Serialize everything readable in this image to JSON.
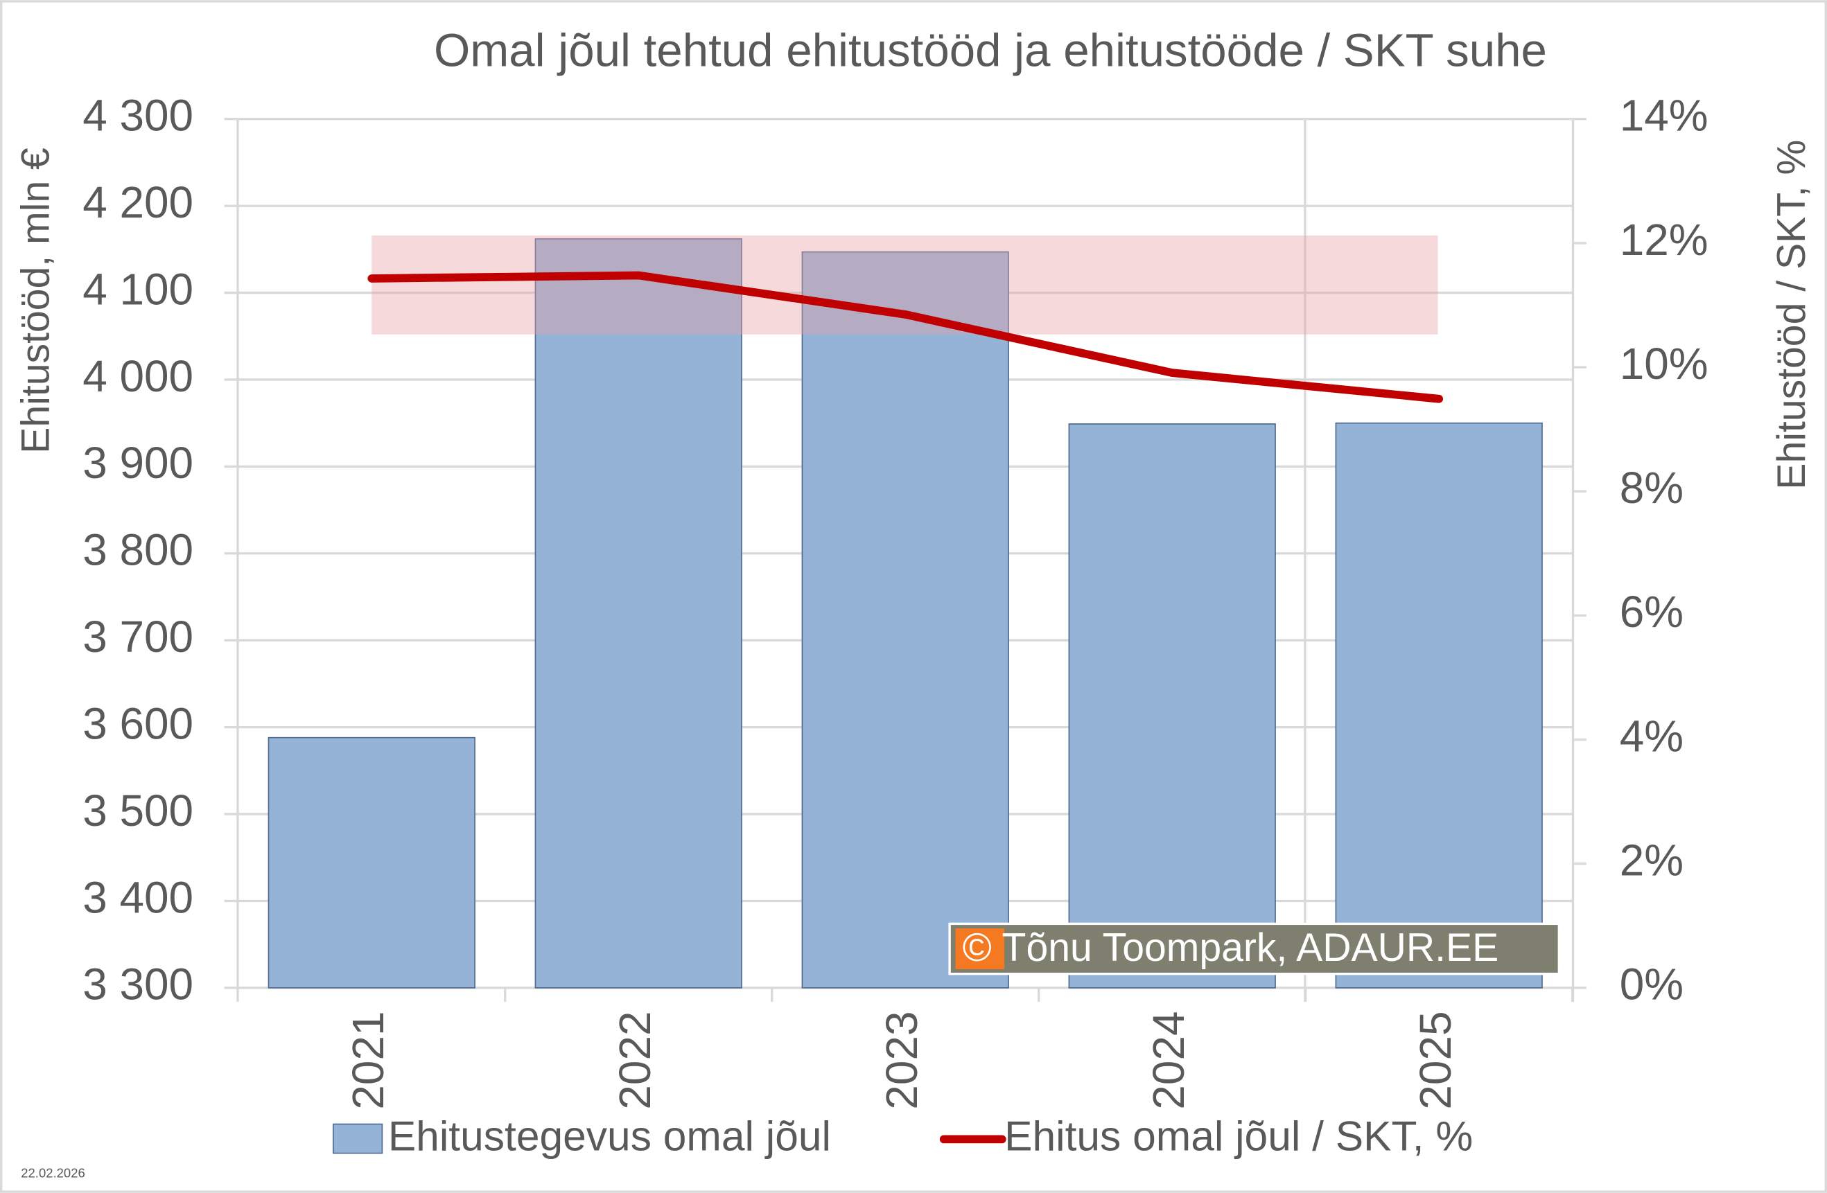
{
  "chart_data": {
    "type": "bar",
    "title": "Omal jõul tehtud ehitustööd ja ehitustööde / SKT suhe",
    "y_label": "Ehitustööd, mln €",
    "y2_label": "Ehitustööd / SKT, %",
    "categories": [
      "2021",
      "2022",
      "2023",
      "2024",
      "2025"
    ],
    "series": [
      {
        "name": "Ehitustegevus omal jõul",
        "type": "bar",
        "color": "#95b3d7",
        "values": [
          3588,
          4162,
          4147,
          3949,
          3950
        ]
      },
      {
        "name": "Ehitus omal jõul / SKT, %",
        "type": "line",
        "axis": "y2",
        "color": "#c00000",
        "values": [
          11.43,
          11.48,
          10.85,
          9.91,
          9.49
        ]
      }
    ],
    "ylim": [
      3300,
      4300
    ],
    "yticks": [
      {
        "value": 3300,
        "label": "3 300"
      },
      {
        "value": 3400,
        "label": "3 400"
      },
      {
        "value": 3500,
        "label": "3 500"
      },
      {
        "value": 3600,
        "label": "3 600"
      },
      {
        "value": 3700,
        "label": "3 700"
      },
      {
        "value": 3800,
        "label": "3 800"
      },
      {
        "value": 3900,
        "label": "3 900"
      },
      {
        "value": 4000,
        "label": "4 000"
      },
      {
        "value": 4100,
        "label": "4 100"
      },
      {
        "value": 4200,
        "label": "4 200"
      },
      {
        "value": 4300,
        "label": "4 300"
      }
    ],
    "y2lim": [
      0,
      14
    ],
    "y2ticks": [
      {
        "value": 0,
        "label": "0%"
      },
      {
        "value": 2,
        "label": "2%"
      },
      {
        "value": 4,
        "label": "4%"
      },
      {
        "value": 6,
        "label": "6%"
      },
      {
        "value": 8,
        "label": "8%"
      },
      {
        "value": 10,
        "label": "10%"
      },
      {
        "value": 12,
        "label": "12%"
      },
      {
        "value": 14,
        "label": "14%"
      }
    ],
    "grid": true,
    "legend": "bottom",
    "watermark": "© Tõnu Toompark, ADAUR.EE",
    "date": "22.02.2026"
  }
}
